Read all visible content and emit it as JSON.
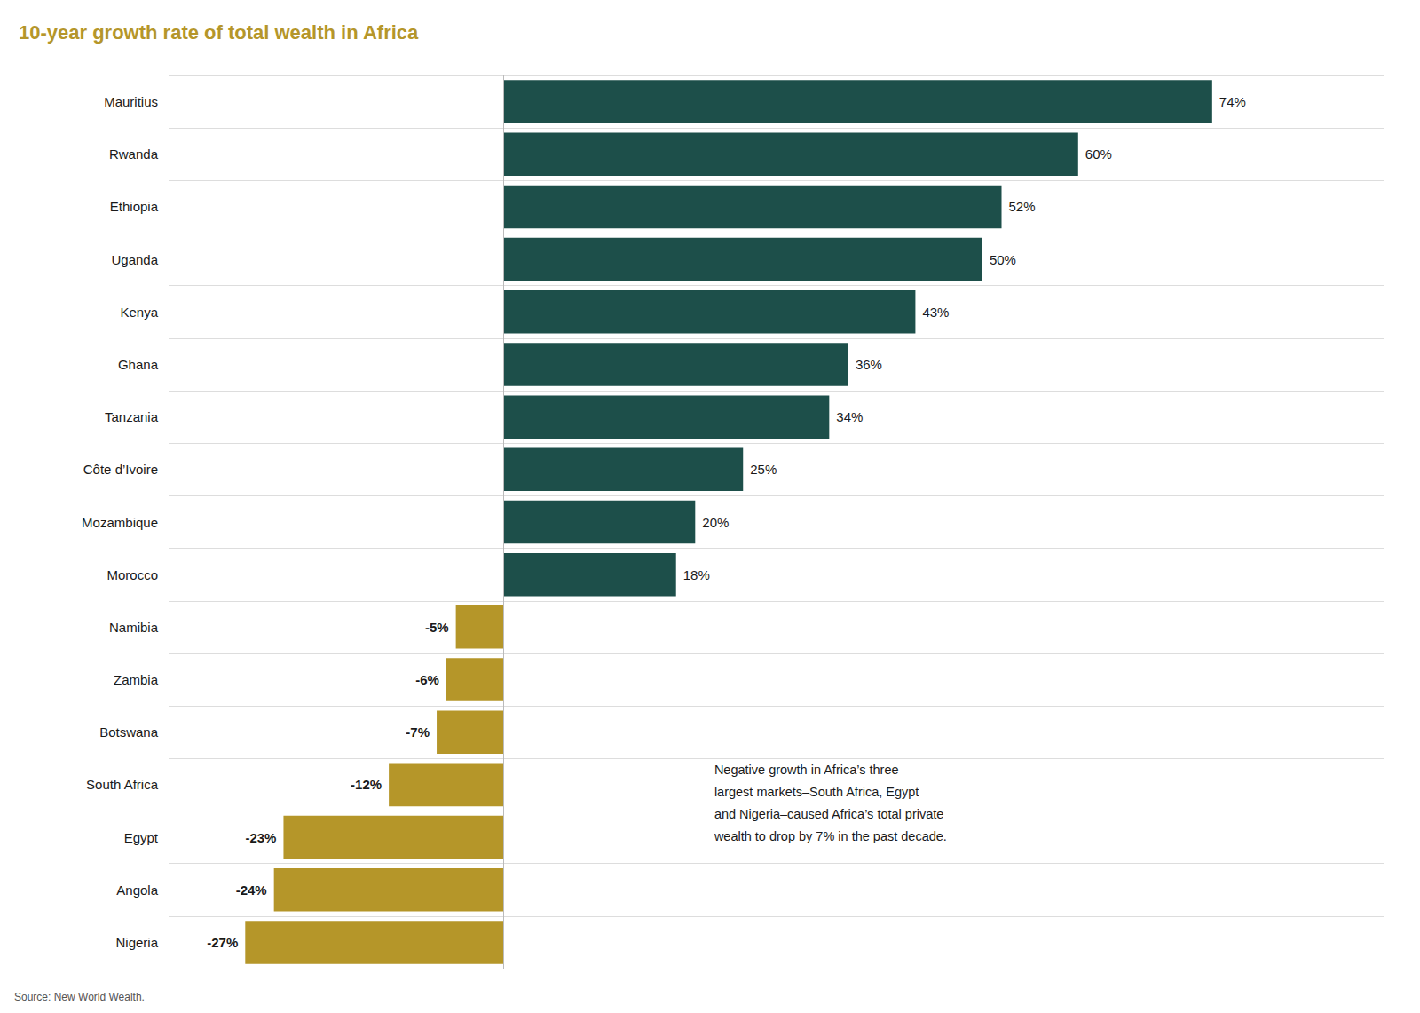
{
  "chart_data": {
    "type": "bar",
    "orientation": "horizontal",
    "title": "10-year growth rate of total wealth in Africa",
    "annotations": [
      "Negative growth in Africa’s three\nlargest markets–South Africa, Egypt\nand Nigeria–caused Africa’s total private\nwealth to drop by 7% in the past decade.",
      "Source: New World Wealth."
    ],
    "categories": [
      "Mauritius",
      "Rwanda",
      "Ethiopia",
      "Uganda",
      "Kenya",
      "Ghana",
      "Tanzania",
      "Côte d’Ivoire",
      "Mozambique",
      "Morocco",
      "Namibia",
      "Zambia",
      "Botswana",
      "South Africa",
      "Egypt",
      "Angola",
      "Nigeria"
    ],
    "values": [
      74,
      60,
      52,
      50,
      43,
      36,
      34,
      25,
      20,
      18,
      -5,
      -6,
      -7,
      -12,
      -23,
      -24,
      -27
    ],
    "value_labels": [
      "74%",
      "60%",
      "52%",
      "50%",
      "43%",
      "36%",
      "34%",
      "25%",
      "20%",
      "18%",
      "-5%",
      "-6%",
      "-7%",
      "-12%",
      "-23%",
      "-24%",
      "-27%"
    ],
    "colors": [
      "#1d4f4a",
      "#1d4f4a",
      "#1d4f4a",
      "#1d4f4a",
      "#1d4f4a",
      "#1d4f4a",
      "#1d4f4a",
      "#1d4f4a",
      "#1d4f4a",
      "#1d4f4a",
      "#b59629",
      "#b59629",
      "#b59629",
      "#b59629",
      "#b59629",
      "#b59629",
      "#b59629"
    ],
    "xlim": [
      -35,
      92
    ],
    "data_labels": true,
    "tick_labels": "y",
    "grid": true
  }
}
